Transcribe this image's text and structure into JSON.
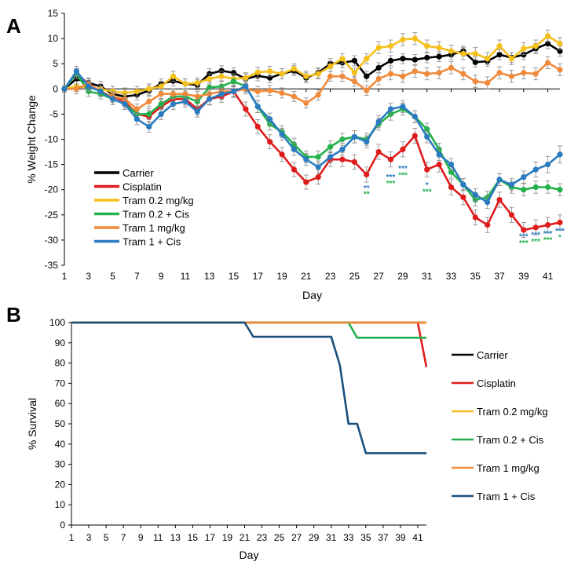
{
  "chart_data": [
    {
      "panel": "A",
      "type": "line",
      "ylabel": "% Weight Change",
      "xlabel": "Day",
      "ylim": [
        -35,
        15
      ],
      "yticks": [
        15,
        10,
        5,
        0,
        -5,
        -10,
        -15,
        -20,
        -25,
        -30,
        -35
      ],
      "xlim": [
        1,
        42
      ],
      "xticks": [
        1,
        3,
        5,
        7,
        9,
        11,
        13,
        15,
        17,
        19,
        21,
        23,
        25,
        27,
        29,
        31,
        33,
        35,
        37,
        39,
        41
      ],
      "legend_position": "bottom-left",
      "series": [
        {
          "name": "Carrier",
          "color": "#000000",
          "x": [
            1,
            2,
            3,
            4,
            5,
            6,
            7,
            8,
            9,
            10,
            11,
            12,
            13,
            14,
            15,
            16,
            17,
            18,
            19,
            20,
            21,
            22,
            23,
            24,
            25,
            26,
            27,
            28,
            29,
            30,
            31,
            32,
            33,
            34,
            35,
            36,
            37,
            38,
            39,
            40,
            41,
            42
          ],
          "values": [
            0,
            2,
            1.2,
            0.5,
            -1,
            -1.5,
            -1.2,
            -0.3,
            1,
            1.6,
            1,
            0.8,
            3,
            3.6,
            3.2,
            2,
            2.6,
            2.2,
            3,
            3.6,
            2.2,
            3.2,
            5,
            5.2,
            5.6,
            2.5,
            4.2,
            5.6,
            6,
            5.8,
            6.2,
            6.4,
            6.8,
            7.5,
            5.3,
            5.5,
            6.8,
            6.2,
            6.8,
            8,
            9,
            7.5
          ],
          "err": [
            0.6,
            1,
            1,
            1,
            1,
            1,
            1,
            1,
            1,
            1,
            1,
            1,
            1,
            1,
            1,
            1,
            1,
            1,
            1,
            1,
            1,
            1,
            1,
            1,
            1,
            1,
            1,
            1,
            1,
            1,
            1,
            1,
            1,
            1,
            1,
            1,
            1,
            1,
            1,
            1,
            1,
            1
          ]
        },
        {
          "name": "Cisplatin",
          "color": "#e01b1b",
          "x": [
            1,
            2,
            3,
            4,
            5,
            6,
            7,
            8,
            9,
            10,
            11,
            12,
            13,
            14,
            15,
            16,
            17,
            18,
            19,
            20,
            21,
            22,
            23,
            24,
            25,
            26,
            27,
            28,
            29,
            30,
            31,
            32,
            33,
            34,
            35,
            36,
            37,
            38,
            39,
            40,
            41,
            42
          ],
          "values": [
            0,
            3,
            1,
            -0.5,
            -1.5,
            -2.5,
            -5,
            -5.5,
            -3.5,
            -2,
            -2,
            -4,
            -2,
            -1.5,
            -0.5,
            -4,
            -7.5,
            -10.5,
            -13,
            -16,
            -18.5,
            -17.5,
            -14,
            -14,
            -14.5,
            -17,
            -12.5,
            -14,
            -12,
            -9.3,
            -16,
            -15,
            -19.5,
            -21.5,
            -25.5,
            -27,
            -22,
            -25,
            -28,
            -27.5,
            -27,
            -26.5
          ],
          "err": [
            0.6,
            1,
            1,
            1,
            1.2,
            1.2,
            1.2,
            1.2,
            1.2,
            1.2,
            1.2,
            1.2,
            1.2,
            1.2,
            1.2,
            1.4,
            1.4,
            1.4,
            1.4,
            1.4,
            1.4,
            1.4,
            1.4,
            1.4,
            1.4,
            1.5,
            1.5,
            1.5,
            1.5,
            1.5,
            1.5,
            1.5,
            1.5,
            1.5,
            1.5,
            1.5,
            1.5,
            1.5,
            1.5,
            1.5,
            1.5,
            1.5
          ]
        },
        {
          "name": "Tram 0.2 mg/kg",
          "color": "#f5c01c",
          "x": [
            1,
            2,
            3,
            4,
            5,
            6,
            7,
            8,
            9,
            10,
            11,
            12,
            13,
            14,
            15,
            16,
            17,
            18,
            19,
            20,
            21,
            22,
            23,
            24,
            25,
            26,
            27,
            28,
            29,
            30,
            31,
            32,
            33,
            34,
            35,
            36,
            37,
            38,
            39,
            40,
            41,
            42
          ],
          "values": [
            0,
            0.5,
            0.3,
            0,
            -0.5,
            -0.8,
            -0.5,
            0,
            0.5,
            2.5,
            1,
            1.2,
            2,
            2.5,
            2,
            2.2,
            3.3,
            3.5,
            3,
            4,
            2.5,
            3,
            4.5,
            6,
            3.2,
            6,
            8.2,
            8.5,
            9.8,
            10,
            8.5,
            8.2,
            7.5,
            7,
            7,
            6,
            8.5,
            6,
            8,
            8.5,
            10.5,
            9
          ],
          "err": [
            0.6,
            1,
            1,
            1,
            1,
            1,
            1,
            1,
            1,
            1,
            1,
            1,
            1,
            1,
            1,
            1,
            1,
            1,
            1,
            1,
            1,
            1,
            1,
            1,
            1,
            1,
            1.2,
            1.2,
            1.2,
            1.2,
            1.2,
            1.2,
            1.2,
            1.2,
            1.2,
            1.2,
            1.2,
            1.2,
            1.2,
            1.2,
            1.2,
            1.2
          ]
        },
        {
          "name": "Tram 0.2 + Cis",
          "color": "#22b14c",
          "x": [
            1,
            2,
            3,
            4,
            5,
            6,
            7,
            8,
            9,
            10,
            11,
            12,
            13,
            14,
            15,
            16,
            17,
            18,
            19,
            20,
            21,
            22,
            23,
            24,
            25,
            26,
            27,
            28,
            29,
            30,
            31,
            32,
            33,
            34,
            35,
            36,
            37,
            38,
            39,
            40,
            41,
            42
          ],
          "values": [
            0,
            3,
            -0.5,
            -1,
            -2,
            -3,
            -5,
            -5,
            -3,
            -1.5,
            -1.5,
            -2.5,
            0.3,
            0.5,
            1.5,
            0.5,
            -3.5,
            -7,
            -8.5,
            -11,
            -13.5,
            -13.5,
            -11.5,
            -10,
            -9.5,
            -10,
            -7,
            -5,
            -4,
            -5.5,
            -8,
            -12,
            -16.5,
            -19,
            -22,
            -21.5,
            -18,
            -19.5,
            -20,
            -19.5,
            -19.5,
            -20
          ],
          "err": [
            0.6,
            1,
            1,
            1,
            1.1,
            1.1,
            1.1,
            1.1,
            1.1,
            1.1,
            1.1,
            1.1,
            1.1,
            1.1,
            1.1,
            1.1,
            1.2,
            1.2,
            1.2,
            1.2,
            1.2,
            1.2,
            1.2,
            1.2,
            1.2,
            1.2,
            1.2,
            1.2,
            1.2,
            1.2,
            1.2,
            1.2,
            1.2,
            1.2,
            1.2,
            1.2,
            1.2,
            1.2,
            1.2,
            1.2,
            1.2,
            1.2
          ]
        },
        {
          "name": "Tram 1 mg/kg",
          "color": "#f08a3b",
          "x": [
            1,
            2,
            3,
            4,
            5,
            6,
            7,
            8,
            9,
            10,
            11,
            12,
            13,
            14,
            15,
            16,
            17,
            18,
            19,
            20,
            21,
            22,
            23,
            24,
            25,
            26,
            27,
            28,
            29,
            30,
            31,
            32,
            33,
            34,
            35,
            36,
            37,
            38,
            39,
            40,
            41,
            42
          ],
          "values": [
            0,
            0,
            1,
            -0.5,
            -1.5,
            -2,
            -4,
            -2.5,
            -1,
            -1,
            -1,
            -1.5,
            -1,
            -0.5,
            -0.5,
            0,
            -0.5,
            -0.3,
            -0.8,
            -1.5,
            -2.8,
            -1.2,
            2.5,
            2.5,
            1.5,
            -0.3,
            2,
            3,
            2.5,
            3.5,
            3,
            3.2,
            4.2,
            3,
            1.5,
            1.2,
            3.2,
            2.5,
            3.2,
            3,
            5.2,
            3.8
          ],
          "err": [
            0.6,
            1,
            1,
            1,
            1,
            1,
            1,
            1,
            1,
            1,
            1,
            1,
            1,
            1,
            1,
            1,
            1,
            1,
            1,
            1,
            1,
            1,
            1,
            1,
            1,
            1,
            1.2,
            1.2,
            1.2,
            1.2,
            1.2,
            1.2,
            1.2,
            1.2,
            1.2,
            1.2,
            1.2,
            1.2,
            1.2,
            1.2,
            1.2,
            1.2
          ]
        },
        {
          "name": "Tram 1 + Cis",
          "color": "#2a7abf",
          "x": [
            1,
            2,
            3,
            4,
            5,
            6,
            7,
            8,
            9,
            10,
            11,
            12,
            13,
            14,
            15,
            16,
            17,
            18,
            19,
            20,
            21,
            22,
            23,
            24,
            25,
            26,
            27,
            28,
            29,
            30,
            31,
            32,
            33,
            34,
            35,
            36,
            37,
            38,
            39,
            40,
            41,
            42
          ],
          "values": [
            0,
            3.5,
            0.5,
            -0.5,
            -2,
            -3,
            -6,
            -7.5,
            -5,
            -3,
            -2.5,
            -4.5,
            -2,
            -1,
            -0.5,
            0.5,
            -3.5,
            -6,
            -9,
            -12,
            -14,
            -15.5,
            -13.5,
            -12,
            -9.5,
            -10.5,
            -6.5,
            -4,
            -3.5,
            -5.5,
            -9.5,
            -13,
            -15,
            -19,
            -21,
            -22.5,
            -18,
            -19,
            -17.5,
            -16,
            -15,
            -13
          ],
          "err": [
            0.6,
            1,
            1,
            1,
            1.1,
            1.1,
            1.1,
            1.1,
            1.1,
            1.1,
            1.1,
            1.1,
            1.1,
            1.1,
            1.1,
            1.1,
            1.2,
            1.2,
            1.2,
            1.2,
            1.2,
            1.2,
            1.2,
            1.2,
            1.2,
            1.2,
            1.2,
            1.2,
            1.2,
            1.2,
            1.2,
            1.2,
            1.2,
            1.2,
            1.2,
            1.2,
            1.2,
            1.2,
            1.2,
            1.5,
            1.6,
            1.7
          ]
        }
      ],
      "annotations": [
        {
          "text": "**",
          "x": 26,
          "y": -20.2,
          "color": "#2a7abf"
        },
        {
          "text": "**",
          "x": 26,
          "y": -21.4,
          "color": "#22b14c"
        },
        {
          "text": "***",
          "x": 28,
          "y": -18.0,
          "color": "#2a7abf"
        },
        {
          "text": "***",
          "x": 28,
          "y": -19.3,
          "color": "#22b14c"
        },
        {
          "text": "***",
          "x": 29,
          "y": -16.3,
          "color": "#2a7abf"
        },
        {
          "text": "***",
          "x": 29,
          "y": -17.6,
          "color": "#22b14c"
        },
        {
          "text": "*",
          "x": 31,
          "y": -19.6,
          "color": "#2a7abf"
        },
        {
          "text": "***",
          "x": 31,
          "y": -20.9,
          "color": "#22b14c"
        },
        {
          "text": "***",
          "x": 39,
          "y": -29.8,
          "color": "#2a7abf"
        },
        {
          "text": "***",
          "x": 39,
          "y": -31.1,
          "color": "#22b14c"
        },
        {
          "text": "***",
          "x": 40,
          "y": -29.5,
          "color": "#2a7abf"
        },
        {
          "text": "***",
          "x": 40,
          "y": -30.8,
          "color": "#22b14c"
        },
        {
          "text": "***",
          "x": 41,
          "y": -29.2,
          "color": "#2a7abf"
        },
        {
          "text": "***",
          "x": 41,
          "y": -30.5,
          "color": "#22b14c"
        },
        {
          "text": "***",
          "x": 42,
          "y": -28.7,
          "color": "#2a7abf"
        },
        {
          "text": "*",
          "x": 42,
          "y": -29.9,
          "color": "#22b14c"
        }
      ]
    },
    {
      "panel": "B",
      "type": "line",
      "ylabel": "% Survival",
      "xlabel": "Day",
      "ylim": [
        0,
        100
      ],
      "yticks": [
        100,
        90,
        80,
        70,
        60,
        50,
        40,
        30,
        20,
        10,
        0
      ],
      "xlim": [
        1,
        42
      ],
      "xticks": [
        1,
        3,
        5,
        7,
        9,
        11,
        13,
        15,
        17,
        19,
        21,
        23,
        25,
        27,
        29,
        31,
        33,
        35,
        37,
        39,
        41
      ],
      "legend_position": "right",
      "series": [
        {
          "name": "Carrier",
          "color": "#000000",
          "x": [
            1,
            42
          ],
          "values": [
            100,
            100
          ]
        },
        {
          "name": "Cisplatin",
          "color": "#e01b1b",
          "x": [
            1,
            41,
            42
          ],
          "values": [
            100,
            100,
            78
          ]
        },
        {
          "name": "Tram 0.2 mg/kg",
          "color": "#f5c01c",
          "x": [
            1,
            42
          ],
          "values": [
            100,
            100
          ]
        },
        {
          "name": "Tram 0.2 + Cis",
          "color": "#22b14c",
          "x": [
            1,
            33,
            34,
            42
          ],
          "values": [
            100,
            100,
            92.5,
            92.5
          ]
        },
        {
          "name": "Tram 1 mg/kg",
          "color": "#f08a3b",
          "x": [
            1,
            42
          ],
          "values": [
            100,
            100
          ]
        },
        {
          "name": "Tram 1 + Cis",
          "color": "#1b4f7c",
          "x": [
            1,
            21,
            22,
            31,
            32,
            33,
            34,
            35,
            42
          ],
          "values": [
            100,
            100,
            93,
            93,
            79,
            50,
            50,
            35.5,
            35.5
          ]
        }
      ]
    }
  ],
  "panel_labels": {
    "a": "A",
    "b": "B"
  }
}
